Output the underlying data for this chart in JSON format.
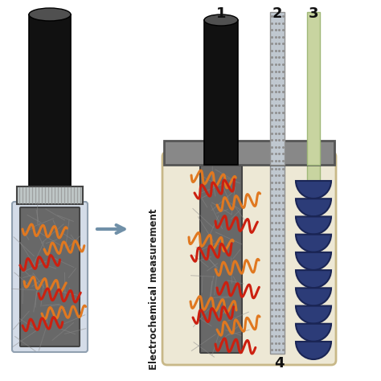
{
  "bg_color": "#ffffff",
  "arrow_color": "#7090a8",
  "text_label": "Electrochemical measurement",
  "numbers": [
    "1",
    "2",
    "3"
  ],
  "number4": "4",
  "cell_wall_color": "#ede8d5",
  "cell_border_color": "#c8b888",
  "lid_color": "#888888",
  "lid_border": "#555555",
  "nanofiber_color": "#686868",
  "nanofiber_lines": "#888888",
  "curl_orange": "#e07820",
  "curl_red": "#cc2010",
  "disc_fill": "#2c3c78",
  "disc_edge": "#1a2555",
  "wire2_color_bg": "#c0c8c8",
  "wire2_hatch": "#909090",
  "wire3_color": "#c8d4a0",
  "wire3_border": "#a0b878",
  "vial_body": "#d4dce8",
  "vial_body_border": "#90a0b0",
  "vial_cap_color": "#111111",
  "vial_cap_top": "#606060",
  "vial_collar_color": "#c0c8c8",
  "vial_collar_lines": "#909090",
  "black_rod_color": "#111111",
  "black_rod_top": "#505050"
}
